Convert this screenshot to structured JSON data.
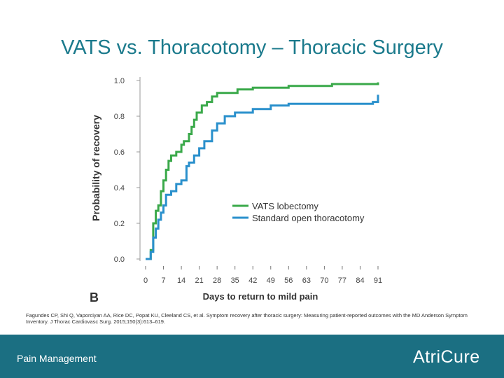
{
  "slide": {
    "title": "VATS vs. Thoracotomy – Thoracic Surgery",
    "citation": "Fagundes CP, Shi Q, Vaporciyan AA, Rice DC, Popat KU, Cleeland CS, et al. Symptom recovery after thoracic surgery: Measuring patient-reported outcomes with the MD Anderson Symptom Inventory. J Thorac Cardiovasc Surg. 2015;150(3):613–619.",
    "footer_text": "Pain Management",
    "logo_text": "AtriCure"
  },
  "colors": {
    "title": "#1b7a8c",
    "footer": "#1b6f82",
    "vats": "#3aa94a",
    "open": "#2a90cc"
  },
  "chart_data": {
    "type": "line",
    "panel_label": "B",
    "xlabel": "Days to return to mild pain",
    "ylabel": "Probability of recovery",
    "x_ticks": [
      0,
      7,
      14,
      21,
      28,
      35,
      42,
      49,
      56,
      63,
      70,
      77,
      84,
      91
    ],
    "y_ticks": [
      "0.0",
      "0.2",
      "0.4",
      "0.6",
      "0.8",
      "1.0"
    ],
    "xlim": [
      0,
      91
    ],
    "ylim": [
      0,
      1
    ],
    "legend_position": "right",
    "series": [
      {
        "name": "VATS lobectomy",
        "color": "#3aa94a",
        "points": [
          [
            0,
            0
          ],
          [
            2,
            0
          ],
          [
            2,
            0.05
          ],
          [
            3,
            0.05
          ],
          [
            3,
            0.2
          ],
          [
            4,
            0.2
          ],
          [
            4,
            0.27
          ],
          [
            5,
            0.27
          ],
          [
            5,
            0.3
          ],
          [
            6,
            0.3
          ],
          [
            6,
            0.38
          ],
          [
            7,
            0.38
          ],
          [
            7,
            0.44
          ],
          [
            8,
            0.44
          ],
          [
            8,
            0.5
          ],
          [
            9,
            0.5
          ],
          [
            9,
            0.55
          ],
          [
            10,
            0.55
          ],
          [
            10,
            0.58
          ],
          [
            12,
            0.58
          ],
          [
            12,
            0.6
          ],
          [
            14,
            0.6
          ],
          [
            14,
            0.64
          ],
          [
            15,
            0.64
          ],
          [
            15,
            0.66
          ],
          [
            17,
            0.66
          ],
          [
            17,
            0.7
          ],
          [
            18,
            0.7
          ],
          [
            18,
            0.74
          ],
          [
            19,
            0.74
          ],
          [
            19,
            0.78
          ],
          [
            20,
            0.78
          ],
          [
            20,
            0.82
          ],
          [
            22,
            0.82
          ],
          [
            22,
            0.86
          ],
          [
            24,
            0.86
          ],
          [
            24,
            0.88
          ],
          [
            26,
            0.88
          ],
          [
            26,
            0.91
          ],
          [
            28,
            0.91
          ],
          [
            28,
            0.93
          ],
          [
            36,
            0.93
          ],
          [
            36,
            0.95
          ],
          [
            42,
            0.95
          ],
          [
            42,
            0.96
          ],
          [
            56,
            0.96
          ],
          [
            56,
            0.97
          ],
          [
            73,
            0.97
          ],
          [
            73,
            0.98
          ],
          [
            91,
            0.98
          ],
          [
            91,
            0.99
          ]
        ]
      },
      {
        "name": "Standard open thoracotomy",
        "color": "#2a90cc",
        "points": [
          [
            0,
            0
          ],
          [
            2,
            0
          ],
          [
            2,
            0.04
          ],
          [
            3,
            0.04
          ],
          [
            3,
            0.12
          ],
          [
            4,
            0.12
          ],
          [
            4,
            0.17
          ],
          [
            5,
            0.17
          ],
          [
            5,
            0.22
          ],
          [
            6,
            0.22
          ],
          [
            6,
            0.26
          ],
          [
            7,
            0.26
          ],
          [
            7,
            0.3
          ],
          [
            8,
            0.3
          ],
          [
            8,
            0.36
          ],
          [
            10,
            0.36
          ],
          [
            10,
            0.38
          ],
          [
            12,
            0.38
          ],
          [
            12,
            0.42
          ],
          [
            14,
            0.42
          ],
          [
            14,
            0.44
          ],
          [
            16,
            0.44
          ],
          [
            16,
            0.52
          ],
          [
            17,
            0.52
          ],
          [
            17,
            0.54
          ],
          [
            19,
            0.54
          ],
          [
            19,
            0.58
          ],
          [
            21,
            0.58
          ],
          [
            21,
            0.62
          ],
          [
            23,
            0.62
          ],
          [
            23,
            0.66
          ],
          [
            26,
            0.66
          ],
          [
            26,
            0.72
          ],
          [
            28,
            0.72
          ],
          [
            28,
            0.76
          ],
          [
            31,
            0.76
          ],
          [
            31,
            0.8
          ],
          [
            35,
            0.8
          ],
          [
            35,
            0.82
          ],
          [
            42,
            0.82
          ],
          [
            42,
            0.84
          ],
          [
            49,
            0.84
          ],
          [
            49,
            0.86
          ],
          [
            56,
            0.86
          ],
          [
            56,
            0.87
          ],
          [
            70,
            0.87
          ],
          [
            70,
            0.87
          ],
          [
            89,
            0.87
          ],
          [
            89,
            0.88
          ],
          [
            91,
            0.88
          ],
          [
            91,
            0.92
          ]
        ]
      }
    ]
  }
}
